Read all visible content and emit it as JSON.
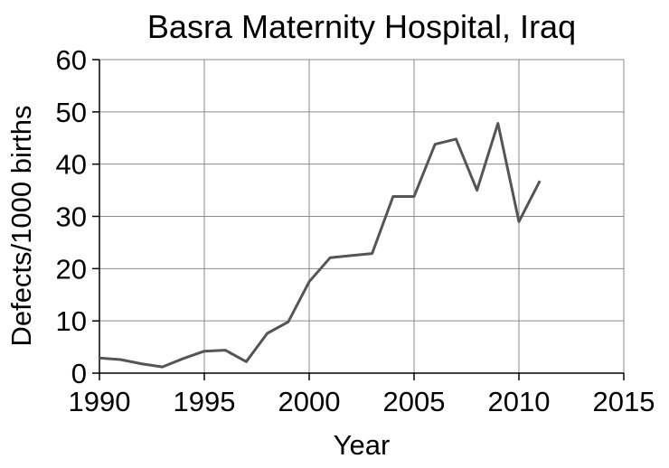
{
  "chart_data": {
    "type": "line",
    "title": "Basra Maternity Hospital, Iraq",
    "xlabel": "Year",
    "ylabel": "Defects/1000 births",
    "xlim": [
      1990,
      2015
    ],
    "ylim": [
      0,
      60
    ],
    "x_ticks": [
      1990,
      1995,
      2000,
      2005,
      2010,
      2015
    ],
    "y_ticks": [
      0,
      10,
      20,
      30,
      40,
      50,
      60
    ],
    "grid": true,
    "line_color": "#555555",
    "series": [
      {
        "x": [
          1990,
          1991,
          1992,
          1993,
          1994,
          1995,
          1996,
          1997,
          1998,
          1999,
          2000,
          2001,
          2002,
          2003,
          2004,
          2005,
          2006,
          2007,
          2008,
          2009,
          2010,
          2011
        ],
        "values": [
          2.9,
          2.6,
          1.8,
          1.2,
          2.8,
          4.2,
          4.4,
          2.2,
          7.6,
          9.8,
          17.5,
          22.1,
          22.5,
          22.9,
          33.8,
          33.8,
          43.8,
          44.8,
          35.0,
          47.8,
          29.0,
          36.8
        ]
      }
    ]
  }
}
